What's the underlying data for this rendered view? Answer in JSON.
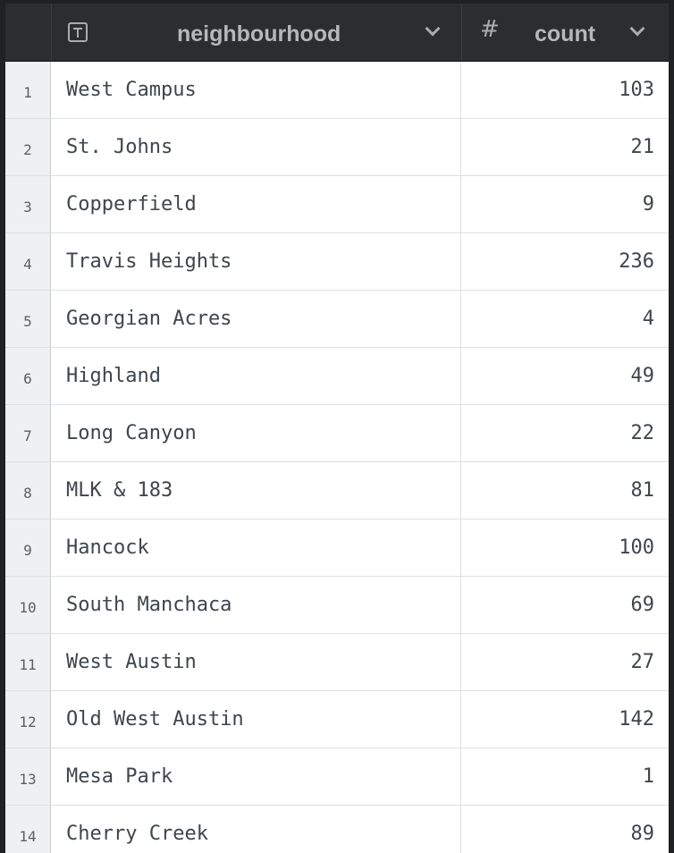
{
  "columns": [
    {
      "type_icon": "text-type-icon",
      "label": "neighbourhood"
    },
    {
      "type_icon": "number-type-icon",
      "label": "count",
      "type_glyph": "#"
    }
  ],
  "rows": [
    {
      "n": "1",
      "neighbourhood": "West Campus",
      "count": "103"
    },
    {
      "n": "2",
      "neighbourhood": "St. Johns",
      "count": "21"
    },
    {
      "n": "3",
      "neighbourhood": "Copperfield",
      "count": "9"
    },
    {
      "n": "4",
      "neighbourhood": "Travis Heights",
      "count": "236"
    },
    {
      "n": "5",
      "neighbourhood": "Georgian Acres",
      "count": "4"
    },
    {
      "n": "6",
      "neighbourhood": "Highland",
      "count": "49"
    },
    {
      "n": "7",
      "neighbourhood": "Long Canyon",
      "count": "22"
    },
    {
      "n": "8",
      "neighbourhood": "MLK & 183",
      "count": "81"
    },
    {
      "n": "9",
      "neighbourhood": "Hancock",
      "count": "100"
    },
    {
      "n": "10",
      "neighbourhood": "South Manchaca",
      "count": "69"
    },
    {
      "n": "11",
      "neighbourhood": "West Austin",
      "count": "27"
    },
    {
      "n": "12",
      "neighbourhood": "Old West Austin",
      "count": "142"
    },
    {
      "n": "13",
      "neighbourhood": "Mesa Park",
      "count": "1"
    },
    {
      "n": "14",
      "neighbourhood": "Cherry Creek",
      "count": "89"
    }
  ]
}
